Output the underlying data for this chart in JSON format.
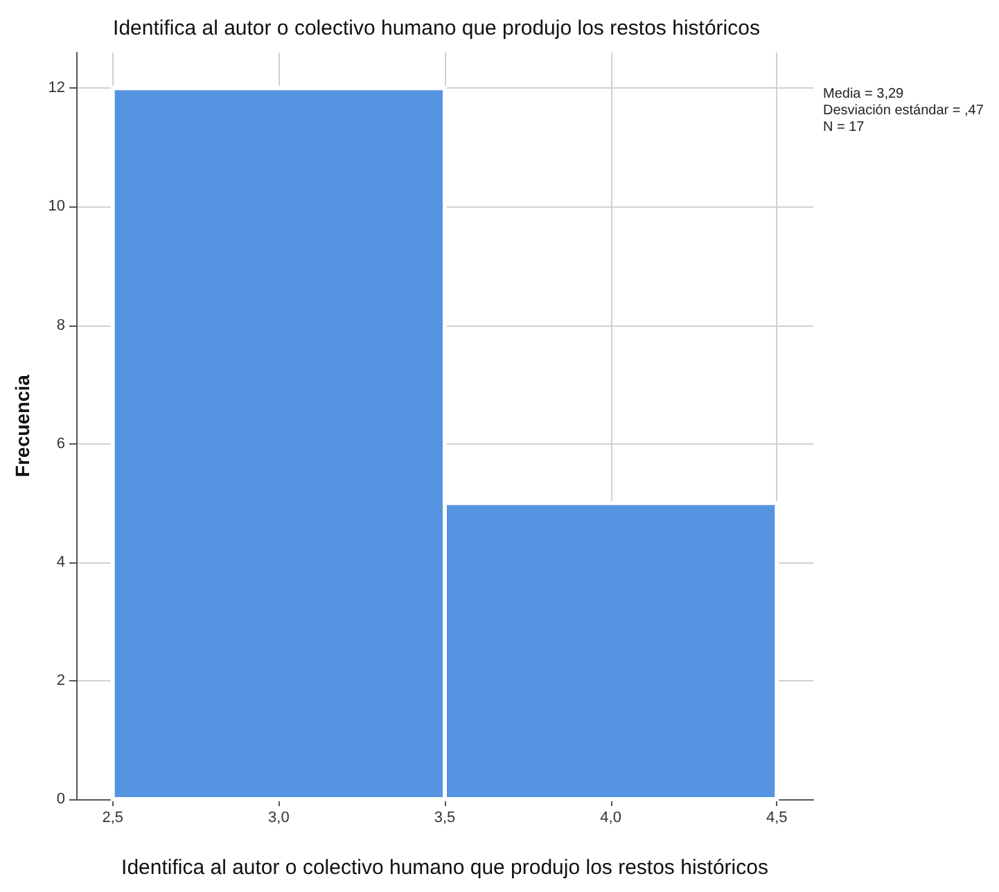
{
  "chart_data": {
    "type": "histogram",
    "title": "Identifica al autor o colectivo humano que produjo los restos históricos",
    "xlabel": "Identifica al autor o colectivo humano que produjo los restos históricos",
    "ylabel": "Frecuencia",
    "bins": [
      2.5,
      3.5,
      4.5
    ],
    "values": [
      12,
      5
    ],
    "color": "#5594e0",
    "xlim": [
      2.39,
      4.61
    ],
    "xticks": [
      {
        "value": 2.5,
        "label": "2,5"
      },
      {
        "value": 3.0,
        "label": "3,0"
      },
      {
        "value": 3.5,
        "label": "3,5"
      },
      {
        "value": 4.0,
        "label": "4,0"
      },
      {
        "value": 4.5,
        "label": "4,5"
      }
    ],
    "ylim": [
      0,
      12.6
    ],
    "yticks": [
      0,
      2,
      4,
      6,
      8,
      10,
      12
    ],
    "grid": true,
    "annotations": [
      "Media = 3,29",
      "Desviación estándar = ,47",
      "N = 17"
    ]
  }
}
